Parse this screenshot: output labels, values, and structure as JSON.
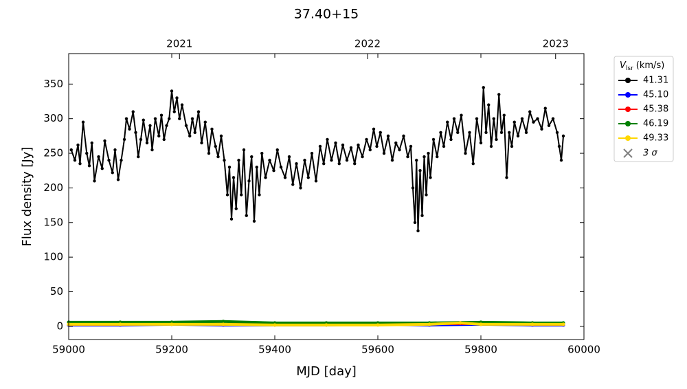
{
  "chart_data": {
    "type": "line",
    "title": "37.40+15",
    "x_label": "MJD [day]",
    "y_label": "Flux density [Jy]",
    "xlim": [
      59000,
      60000
    ],
    "ylim": [
      -19,
      394
    ],
    "xticks": [
      59000,
      59200,
      59400,
      59600,
      59800,
      60000
    ],
    "yticks": [
      0,
      50,
      100,
      150,
      200,
      250,
      300,
      350
    ],
    "x2ticks": [
      {
        "value": 59215,
        "label": "2021"
      },
      {
        "value": 59580,
        "label": "2022"
      },
      {
        "value": 59945,
        "label": "2023"
      }
    ],
    "legend_title": {
      "symbol": "V",
      "subscript": "lsr",
      "unit": "(km/s)"
    },
    "threshold_label": "3 σ",
    "legend": "outside right",
    "series": [
      {
        "name": "41.31",
        "color": "#000000",
        "x": [
          59005,
          59012,
          59018,
          59022,
          59028,
          59035,
          59040,
          59045,
          59050,
          59058,
          59065,
          59070,
          59078,
          59085,
          59090,
          59096,
          59102,
          59108,
          59112,
          59118,
          59125,
          59130,
          59135,
          59140,
          59145,
          59152,
          59158,
          59162,
          59168,
          59175,
          59180,
          59185,
          59190,
          59195,
          59200,
          59205,
          59210,
          59215,
          59220,
          59228,
          59235,
          59240,
          59245,
          59252,
          59258,
          59265,
          59272,
          59278,
          59285,
          59290,
          59296,
          59302,
          59308,
          59312,
          59316,
          59320,
          59325,
          59330,
          59335,
          59340,
          59345,
          59350,
          59355,
          59360,
          59365,
          59370,
          59375,
          59382,
          59390,
          59398,
          59405,
          59412,
          59420,
          59428,
          59435,
          59442,
          59450,
          59458,
          59465,
          59472,
          59480,
          59488,
          59495,
          59502,
          59510,
          59518,
          59525,
          59532,
          59540,
          59548,
          59555,
          59562,
          59570,
          59578,
          59585,
          59592,
          59598,
          59605,
          59612,
          59620,
          59628,
          59635,
          59642,
          59650,
          59658,
          59664,
          59668,
          59672,
          59675,
          59678,
          59682,
          59686,
          59690,
          59694,
          59698,
          59702,
          59708,
          59715,
          59722,
          59728,
          59735,
          59742,
          59748,
          59755,
          59762,
          59770,
          59778,
          59785,
          59792,
          59800,
          59805,
          59810,
          59815,
          59820,
          59825,
          59830,
          59835,
          59840,
          59845,
          59850,
          59855,
          59860,
          59865,
          59872,
          59880,
          59888,
          59895,
          59902,
          59910,
          59918,
          59925,
          59932,
          59940,
          59948,
          59952,
          59956,
          59960
        ],
        "values": [
          255,
          240,
          262,
          235,
          295,
          250,
          232,
          265,
          210,
          245,
          228,
          268,
          240,
          222,
          255,
          212,
          240,
          270,
          300,
          285,
          310,
          280,
          245,
          270,
          298,
          265,
          290,
          255,
          300,
          275,
          305,
          270,
          290,
          300,
          340,
          310,
          330,
          300,
          320,
          290,
          275,
          300,
          280,
          310,
          265,
          295,
          250,
          285,
          260,
          245,
          275,
          240,
          190,
          230,
          155,
          215,
          170,
          240,
          190,
          255,
          160,
          210,
          245,
          152,
          230,
          190,
          250,
          215,
          240,
          225,
          255,
          230,
          215,
          245,
          205,
          235,
          200,
          240,
          215,
          250,
          210,
          260,
          235,
          270,
          240,
          265,
          235,
          262,
          240,
          258,
          235,
          262,
          245,
          270,
          255,
          285,
          260,
          280,
          250,
          275,
          240,
          265,
          255,
          275,
          245,
          260,
          200,
          150,
          240,
          138,
          225,
          160,
          245,
          190,
          250,
          215,
          270,
          245,
          280,
          260,
          295,
          270,
          300,
          280,
          305,
          250,
          280,
          235,
          300,
          265,
          345,
          280,
          320,
          260,
          300,
          270,
          335,
          280,
          305,
          215,
          280,
          260,
          295,
          275,
          300,
          280,
          310,
          295,
          300,
          285,
          315,
          290,
          300,
          280,
          260,
          240,
          275
        ]
      },
      {
        "name": "45.10",
        "color": "#0000ff",
        "x": [
          59000,
          59100,
          59200,
          59300,
          59400,
          59500,
          59600,
          59700,
          59800,
          59900,
          59960
        ],
        "values": [
          2,
          2,
          3,
          2,
          2,
          2,
          3,
          2,
          3,
          2,
          2
        ]
      },
      {
        "name": "45.38",
        "color": "#ff0000",
        "x": [
          59000,
          59100,
          59200,
          59300,
          59400,
          59500,
          59600,
          59700,
          59800,
          59900,
          59960
        ],
        "values": [
          3,
          3,
          4,
          3,
          3,
          3,
          3,
          4,
          4,
          3,
          3
        ]
      },
      {
        "name": "46.19",
        "color": "#008000",
        "x": [
          59000,
          59100,
          59200,
          59300,
          59400,
          59500,
          59600,
          59700,
          59800,
          59900,
          59960
        ],
        "values": [
          6,
          6,
          6,
          7,
          5,
          5,
          5,
          5,
          6,
          5,
          5
        ]
      },
      {
        "name": "49.33",
        "color": "#ffd700",
        "x": [
          59000,
          59100,
          59200,
          59300,
          59400,
          59500,
          59600,
          59700,
          59760,
          59800,
          59900,
          59960
        ],
        "values": [
          3,
          3,
          3,
          3,
          2,
          2,
          2,
          3,
          5,
          3,
          3,
          3
        ]
      }
    ]
  }
}
